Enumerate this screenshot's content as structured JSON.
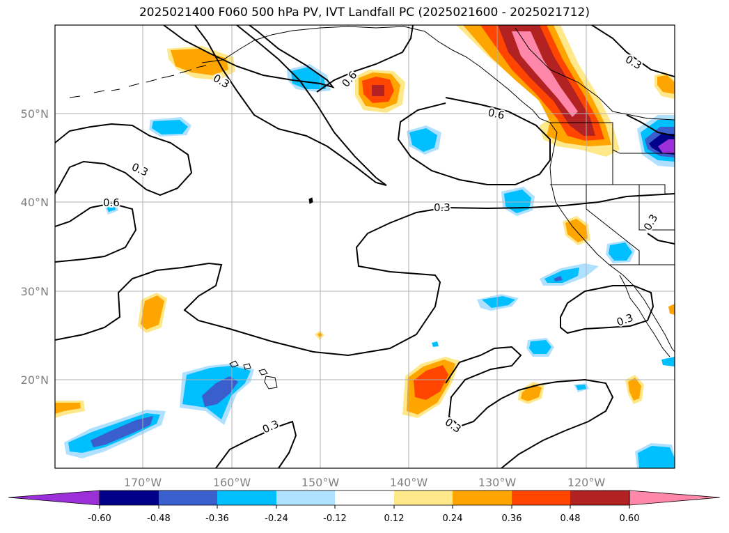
{
  "title": "2025021400 F060 500 hPa PV, IVT Landfall PC (2025021600 - 2025021712)",
  "map": {
    "projection": "PlateCarree",
    "lon_range": [
      -180,
      -110
    ],
    "lat_range": [
      10,
      60
    ],
    "lon_ticks": [
      "170°W",
      "160°W",
      "150°W",
      "140°W",
      "130°W",
      "120°W"
    ],
    "lat_ticks": [
      "50°N",
      "40°N",
      "30°N",
      "20°N"
    ],
    "gridlines": true
  },
  "contour_labels": [
    "0.3",
    "0.3",
    "0.6",
    "0.3",
    "0.6",
    "0.6",
    "0.3",
    "0.3",
    "0.3",
    "0.3",
    "0.3"
  ],
  "colorbar": {
    "extend": "both",
    "levels": [
      "-0.60",
      "-0.48",
      "-0.36",
      "-0.24",
      "-0.12",
      "0.12",
      "0.24",
      "0.36",
      "0.48",
      "0.60"
    ],
    "colors": {
      "under": "#9b30d9",
      "n060": "#00008b",
      "n048": "#3a5fcd",
      "n036": "#00bfff",
      "n024": "#b0e0ff",
      "zero": "#ffffff",
      "p012": "#ffe88a",
      "p024": "#ffa500",
      "p036": "#ff4500",
      "p048": "#b22222",
      "over": "#ff88aa"
    }
  }
}
